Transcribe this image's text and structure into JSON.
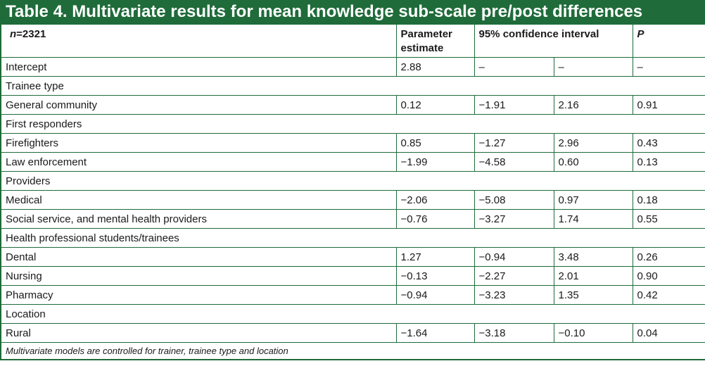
{
  "title": "Table 4. Multivariate results for mean knowledge sub-scale pre/post differences",
  "header": {
    "n_italic": "n",
    "n_rest": "=2321",
    "parameter": "Parameter estimate",
    "ci": "95% confidence interval",
    "p": "P"
  },
  "rows": [
    {
      "label": "Intercept",
      "est": "2.88",
      "lo": "–",
      "hi": "–",
      "p": "–"
    },
    {
      "section": "Trainee type"
    },
    {
      "label": "General community",
      "est": "0.12",
      "lo": "−1.91",
      "hi": "2.16",
      "p": "0.91"
    },
    {
      "section": "First responders"
    },
    {
      "label": "Firefighters",
      "est": "0.85",
      "lo": "−1.27",
      "hi": "2.96",
      "p": "0.43"
    },
    {
      "label": "Law enforcement",
      "est": "−1.99",
      "lo": "−4.58",
      "hi": "0.60",
      "p": "0.13"
    },
    {
      "section": "Providers"
    },
    {
      "label": "Medical",
      "est": "−2.06",
      "lo": "−5.08",
      "hi": "0.97",
      "p": "0.18"
    },
    {
      "label": "Social service, and mental health providers",
      "est": "−0.76",
      "lo": "−3.27",
      "hi": "1.74",
      "p": "0.55"
    },
    {
      "section": "Health professional students/trainees"
    },
    {
      "label": "Dental",
      "est": "1.27",
      "lo": "−0.94",
      "hi": "3.48",
      "p": "0.26"
    },
    {
      "label": "Nursing",
      "est": "−0.13",
      "lo": "−2.27",
      "hi": "2.01",
      "p": "0.90"
    },
    {
      "label": "Pharmacy",
      "est": "−0.94",
      "lo": "−3.23",
      "hi": "1.35",
      "p": "0.42"
    },
    {
      "section": "Location"
    },
    {
      "label": "Rural",
      "est": "−1.64",
      "lo": "−3.18",
      "hi": "−0.10",
      "p": "0.04"
    }
  ],
  "footnote": "Multivariate models are controlled for trainer, trainee type and location"
}
